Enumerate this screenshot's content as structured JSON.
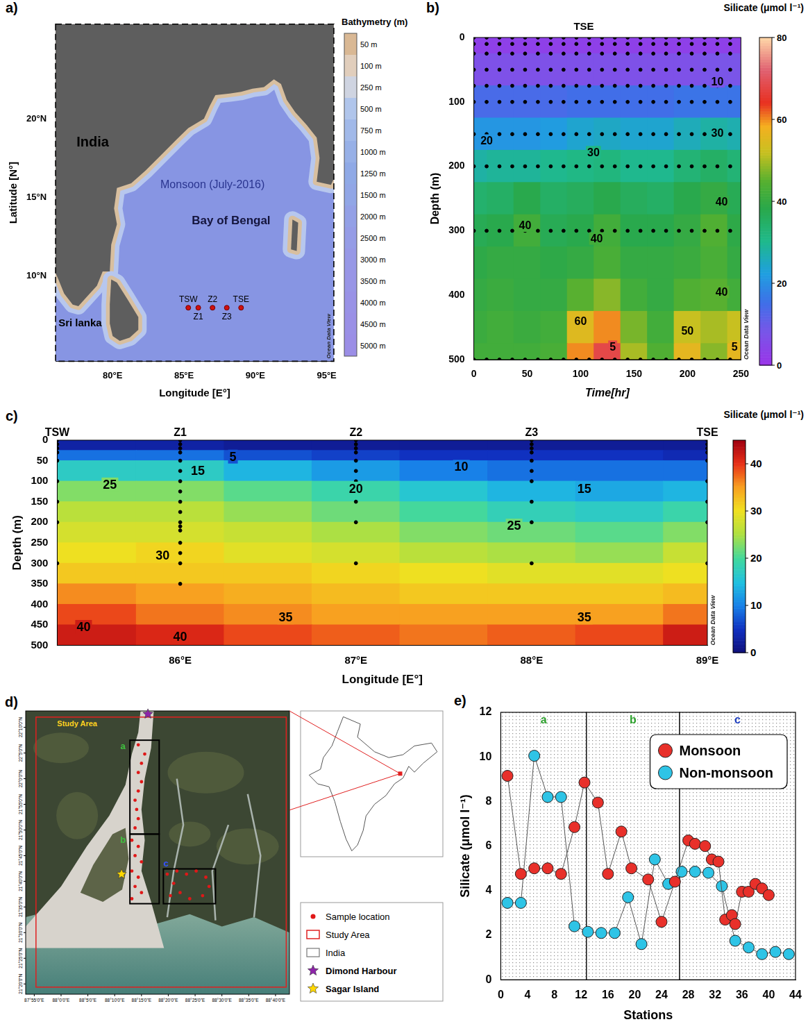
{
  "chart_data": [
    {
      "type": "map",
      "panel_label": "a)",
      "title": "Monsoon (July-2016)",
      "annotations": [
        "India",
        "Sri lanka",
        "Bay of Bengal"
      ],
      "x_label": "Longitude [E°]",
      "y_label": "Latitude [N°]",
      "xlim": [
        76,
        95.5
      ],
      "ylim": [
        4.6,
        26
      ],
      "xticks": [
        {
          "value": 80,
          "label": "80°E"
        },
        {
          "value": 85,
          "label": "85°E"
        },
        {
          "value": 90,
          "label": "90°E"
        },
        {
          "value": 95,
          "label": "95°E"
        }
      ],
      "yticks": [
        {
          "value": 10,
          "label": "10°N"
        },
        {
          "value": 15,
          "label": "15°N"
        },
        {
          "value": 20,
          "label": "20°N"
        }
      ],
      "stations": {
        "names": [
          "TSW",
          "Z1",
          "Z2",
          "Z3",
          "TSE"
        ],
        "x": [
          85.3,
          86,
          87,
          88,
          89
        ],
        "y": [
          8,
          8,
          8,
          8,
          8
        ]
      },
      "colorbar": {
        "title": "Bathymetry (m)",
        "ticks": [
          {
            "value": 50,
            "label": "50 m"
          },
          {
            "value": 100,
            "label": "100 m"
          },
          {
            "value": 250,
            "label": "250 m"
          },
          {
            "value": 500,
            "label": "500 m"
          },
          {
            "value": 750,
            "label": "750 m"
          },
          {
            "value": 1000,
            "label": "1000 m"
          },
          {
            "value": 1250,
            "label": "1250 m"
          },
          {
            "value": 1500,
            "label": "1500 m"
          },
          {
            "value": 2000,
            "label": "2000 m"
          },
          {
            "value": 2500,
            "label": "2500 m"
          },
          {
            "value": 3000,
            "label": "3000 m"
          },
          {
            "value": 3500,
            "label": "3500 m"
          },
          {
            "value": 4000,
            "label": "4000 m"
          },
          {
            "value": 4500,
            "label": "4500 m"
          },
          {
            "value": 5000,
            "label": "5000 m"
          }
        ]
      },
      "watermark": "Ocean Data View"
    },
    {
      "type": "heatmap",
      "panel_label": "b)",
      "title": "TSE",
      "x_label": "Time[hr]",
      "y_label": "Depth (m)",
      "xlim": [
        0,
        250
      ],
      "ylim": [
        500,
        0
      ],
      "xticks": [
        0,
        50,
        100,
        150,
        200,
        250
      ],
      "yticks": [
        0,
        100,
        200,
        300,
        400,
        500
      ],
      "x_edges": [
        0,
        12.5,
        37.5,
        62.5,
        87.5,
        112.5,
        137.5,
        162.5,
        187.5,
        212.5,
        237.5,
        250
      ],
      "y_edges": [
        0,
        25,
        75,
        125,
        175,
        225,
        275,
        325,
        375,
        425,
        475,
        500
      ],
      "cells": [
        [
          3,
          3,
          3,
          3,
          3,
          3,
          3,
          3,
          3,
          3,
          3
        ],
        [
          7,
          7,
          7,
          7,
          7,
          7,
          7,
          7,
          7,
          8,
          8
        ],
        [
          14,
          14,
          14,
          14,
          15,
          15,
          15,
          15,
          16,
          16,
          16
        ],
        [
          21,
          21,
          21,
          22,
          24,
          25,
          24,
          24,
          26,
          28,
          27
        ],
        [
          28,
          29,
          29,
          30,
          31,
          32,
          30,
          30,
          33,
          35,
          33
        ],
        [
          34,
          35,
          38,
          35,
          36,
          38,
          36,
          35,
          38,
          40,
          37
        ],
        [
          37,
          38,
          42,
          37,
          38,
          42,
          38,
          38,
          40,
          44,
          39
        ],
        [
          39,
          40,
          40,
          39,
          40,
          43,
          40,
          40,
          41,
          43,
          40
        ],
        [
          40,
          41,
          40,
          40,
          45,
          48,
          42,
          40,
          44,
          45,
          42
        ],
        [
          41,
          42,
          41,
          42,
          55,
          60,
          47,
          42,
          52,
          50,
          52
        ],
        [
          42,
          42,
          42,
          43,
          60,
          68,
          50,
          44,
          56,
          48,
          56
        ]
      ],
      "colorbar": {
        "title": "Silicate (μmol l⁻¹)",
        "range": [
          0,
          80
        ],
        "ticks": [
          0,
          20,
          40,
          60,
          80
        ]
      },
      "sampling": {
        "x": [
          0,
          12,
          24,
          36,
          48,
          60,
          72,
          84,
          96,
          108,
          120,
          132,
          144,
          156,
          168,
          180,
          192,
          204,
          216,
          228,
          240
        ],
        "y": [
          0,
          10,
          25,
          50,
          75,
          100,
          150,
          200,
          300,
          500
        ]
      },
      "annotations": [
        {
          "text": "10",
          "x": 228,
          "y": 68
        },
        {
          "text": "20",
          "x": 12,
          "y": 160
        },
        {
          "text": "30",
          "x": 112,
          "y": 178
        },
        {
          "text": "30",
          "x": 228,
          "y": 148
        },
        {
          "text": "40",
          "x": 48,
          "y": 292
        },
        {
          "text": "40",
          "x": 115,
          "y": 312
        },
        {
          "text": "40",
          "x": 232,
          "y": 255
        },
        {
          "text": "40",
          "x": 232,
          "y": 395
        },
        {
          "text": "60",
          "x": 100,
          "y": 440
        },
        {
          "text": "50",
          "x": 200,
          "y": 455
        },
        {
          "text": "5",
          "x": 130,
          "y": 480
        },
        {
          "text": "5",
          "x": 244,
          "y": 480
        }
      ],
      "watermark": "Ocean Data View"
    },
    {
      "type": "heatmap",
      "panel_label": "c)",
      "x_label": "Longitude [E°]",
      "y_label": "Depth (m)",
      "xlim": [
        85.3,
        89
      ],
      "ylim": [
        500,
        0
      ],
      "xticks": [
        {
          "value": 86,
          "label": "86°E"
        },
        {
          "value": 87,
          "label": "87°E"
        },
        {
          "value": 88,
          "label": "88°E"
        },
        {
          "value": 89,
          "label": "89°E"
        }
      ],
      "yticks": [
        0,
        50,
        100,
        150,
        200,
        250,
        300,
        350,
        400,
        450,
        500
      ],
      "x_edges": [
        85.3,
        85.75,
        86.25,
        86.75,
        87.25,
        87.75,
        88.25,
        88.75,
        89
      ],
      "y_edges": [
        0,
        25,
        50,
        100,
        150,
        200,
        250,
        300,
        350,
        400,
        450,
        500
      ],
      "cells": [
        [
          3,
          3,
          2,
          2,
          2,
          2,
          2,
          2
        ],
        [
          9,
          9,
          7,
          6,
          5,
          5,
          5,
          4
        ],
        [
          17,
          17,
          14,
          12,
          10,
          9,
          9,
          9
        ],
        [
          23,
          23,
          21,
          19,
          16,
          14,
          13,
          14
        ],
        [
          26,
          26,
          24,
          22,
          20,
          18,
          17,
          19
        ],
        [
          28,
          28,
          27,
          25,
          23,
          22,
          21,
          23
        ],
        [
          30,
          31,
          29,
          28,
          26,
          25,
          24,
          27
        ],
        [
          32,
          32,
          32,
          31,
          30,
          29,
          29,
          30
        ],
        [
          36,
          35,
          34,
          33,
          32,
          32,
          32,
          33
        ],
        [
          39,
          37,
          36,
          35,
          35,
          35,
          35,
          37
        ],
        [
          42,
          41,
          39,
          38,
          37,
          38,
          39,
          42
        ]
      ],
      "colorbar": {
        "title": "Silicate (μmol l⁻¹)",
        "range": [
          0,
          45
        ],
        "ticks": [
          0,
          10,
          20,
          30,
          40
        ]
      },
      "sampling": [
        {
          "name": "TSW",
          "x": 85.3,
          "y": [
            0,
            10,
            20,
            30,
            50,
            100,
            150,
            200,
            300
          ]
        },
        {
          "name": "Z1",
          "x": 86,
          "y": [
            0,
            10,
            20,
            30,
            50,
            75,
            100,
            125,
            150,
            175,
            200,
            210,
            220,
            250,
            275,
            300,
            350
          ]
        },
        {
          "name": "Z2",
          "x": 87,
          "y": [
            0,
            10,
            20,
            30,
            50,
            75,
            100,
            125,
            150,
            200,
            300
          ]
        },
        {
          "name": "Z3",
          "x": 88,
          "y": [
            0,
            10,
            20,
            30,
            50,
            75,
            100,
            150,
            200,
            300
          ]
        },
        {
          "name": "TSE",
          "x": 89,
          "y": [
            0,
            10,
            20,
            30,
            50,
            100,
            150,
            200,
            300
          ]
        }
      ],
      "annotations": [
        {
          "text": "5",
          "x": 86.3,
          "y": 40
        },
        {
          "text": "15",
          "x": 86.1,
          "y": 75
        },
        {
          "text": "10",
          "x": 87.6,
          "y": 65
        },
        {
          "text": "20",
          "x": 87,
          "y": 118
        },
        {
          "text": "15",
          "x": 88.3,
          "y": 118
        },
        {
          "text": "25",
          "x": 85.6,
          "y": 108
        },
        {
          "text": "25",
          "x": 87.9,
          "y": 208
        },
        {
          "text": "30",
          "x": 85.9,
          "y": 280
        },
        {
          "text": "35",
          "x": 86.6,
          "y": 432
        },
        {
          "text": "35",
          "x": 88.3,
          "y": 432
        },
        {
          "text": "40",
          "x": 86.0,
          "y": 478
        },
        {
          "text": "40",
          "x": 85.45,
          "y": 455
        }
      ],
      "watermark": "Ocean Data View"
    },
    {
      "type": "map",
      "panel_label": "d)",
      "title": "Study Area",
      "xlim": [
        87.89,
        88.71
      ],
      "ylim": [
        21.3,
        22.22
      ],
      "xticks": [
        {
          "value": 87.9167,
          "label": "87°55'0\"E"
        },
        {
          "value": 88,
          "label": "88°0'0\"E"
        },
        {
          "value": 88.0833,
          "label": "88°5'0\"E"
        },
        {
          "value": 88.1667,
          "label": "88°10'0\"E"
        },
        {
          "value": 88.25,
          "label": "88°15'0\"E"
        },
        {
          "value": 88.3333,
          "label": "88°20'0\"E"
        },
        {
          "value": 88.4167,
          "label": "88°25'0\"E"
        },
        {
          "value": 88.5,
          "label": "88°30'0\"E"
        },
        {
          "value": 88.5833,
          "label": "88°35'0\"E"
        },
        {
          "value": 88.6667,
          "label": "88°40'0\"E"
        }
      ],
      "yticks": [
        {
          "value": 22.1667,
          "label": "22°10'0\"N"
        },
        {
          "value": 22.0833,
          "label": "22°5'0\"N"
        },
        {
          "value": 22,
          "label": "22°0'0\"N"
        },
        {
          "value": 21.9167,
          "label": "21°55'0\"N"
        },
        {
          "value": 21.8333,
          "label": "21°50'0\"N"
        },
        {
          "value": 21.75,
          "label": "21°45'0\"N"
        },
        {
          "value": 21.6667,
          "label": "21°40'0\"N"
        },
        {
          "value": 21.5833,
          "label": "21°35'0\"N"
        },
        {
          "value": 21.5,
          "label": "21°30'0\"N"
        },
        {
          "value": 21.4167,
          "label": "21°25'0\"N"
        },
        {
          "value": 21.3333,
          "label": "21°20'0\"N"
        }
      ],
      "study_area": {
        "x": [
          87.922,
          88.7
        ],
        "y": [
          21.323,
          22.2
        ]
      },
      "boxes": [
        {
          "label": "a",
          "color": "#3fbf3f",
          "x": [
            88.214,
            88.305
          ],
          "y": [
            21.82,
            22.125
          ]
        },
        {
          "label": "b",
          "color": "#3fbf3f",
          "x": [
            88.214,
            88.305
          ],
          "y": [
            21.594,
            21.82
          ]
        },
        {
          "label": "c",
          "color": "#3355ff",
          "x": [
            88.318,
            88.48
          ],
          "y": [
            21.594,
            21.707
          ]
        }
      ],
      "samples": {
        "x": [
          88.24,
          88.26,
          88.25,
          88.24,
          88.25,
          88.24,
          88.23,
          88.235,
          88.24,
          88.23,
          88.22,
          88.24,
          88.23,
          88.25,
          88.22,
          88.24,
          88.23,
          88.25,
          88.22,
          88.33,
          88.36,
          88.39,
          88.42,
          88.45,
          88.46,
          88.44,
          88.4,
          88.37,
          88.34,
          88.35
        ],
        "y": [
          22.11,
          22.08,
          22.05,
          22.02,
          21.99,
          21.96,
          21.93,
          21.9,
          21.87,
          21.84,
          21.8,
          21.78,
          21.75,
          21.73,
          21.7,
          21.68,
          21.65,
          21.63,
          21.61,
          21.69,
          21.7,
          21.69,
          21.7,
          21.68,
          21.65,
          21.62,
          21.61,
          21.63,
          21.62,
          21.66
        ]
      },
      "places": [
        {
          "name": "Dimond Harbour",
          "color": "#8e24aa",
          "x": 88.27,
          "y": 22.21
        },
        {
          "name": "Sagar Island",
          "color": "#ffd700",
          "x": 88.188,
          "y": 21.69
        }
      ],
      "legend_entries": [
        "Sample location",
        "Study Area",
        "India"
      ]
    },
    {
      "type": "line",
      "panel_label": "e)",
      "x_label": "Stations",
      "y_label": "Silicate (μmol l⁻¹)",
      "xlim": [
        0,
        44
      ],
      "xticks": [
        0,
        4,
        8,
        12,
        16,
        20,
        24,
        28,
        32,
        36,
        40,
        44
      ],
      "ylim": [
        0,
        12
      ],
      "yticks": [
        0,
        2,
        4,
        6,
        8,
        10,
        12
      ],
      "marker": "circle",
      "legend": "upper right",
      "series": [
        {
          "name": "Monsoon",
          "color": "#e8302a",
          "x": [
            1,
            3,
            5,
            7,
            9,
            11,
            12.5,
            14.5,
            16,
            18,
            19.5,
            22,
            24,
            26,
            28,
            29,
            30.5,
            31.5,
            32.5,
            33.5,
            34.5,
            35,
            36,
            37,
            38,
            39,
            40
          ],
          "values": [
            9.15,
            4.75,
            5.0,
            5.0,
            4.75,
            6.85,
            8.85,
            7.95,
            4.75,
            6.65,
            5.0,
            4.5,
            2.6,
            4.4,
            6.25,
            6.1,
            6.0,
            5.4,
            5.3,
            2.7,
            2.9,
            2.5,
            3.95,
            3.95,
            4.3,
            4.1,
            3.8
          ]
        },
        {
          "name": "Non-monsoon",
          "color": "#2ec4e6",
          "x": [
            1,
            3,
            5,
            7,
            9,
            11,
            13,
            15,
            17,
            19,
            21,
            23,
            25,
            27,
            29,
            31,
            33,
            35,
            37,
            39,
            41,
            43
          ],
          "values": [
            3.45,
            3.45,
            10.05,
            8.2,
            8.2,
            2.4,
            2.15,
            2.1,
            2.1,
            3.7,
            1.6,
            5.4,
            4.3,
            4.85,
            4.85,
            4.8,
            4.2,
            1.75,
            1.45,
            1.15,
            1.25,
            1.15
          ]
        }
      ],
      "sections": {
        "edges": [
          0,
          12.8,
          26.7,
          44
        ],
        "labels": [
          "a",
          "b",
          "c"
        ],
        "colors": [
          "#2ca02c",
          "#2ca02c",
          "#1f3fbf"
        ]
      }
    }
  ]
}
